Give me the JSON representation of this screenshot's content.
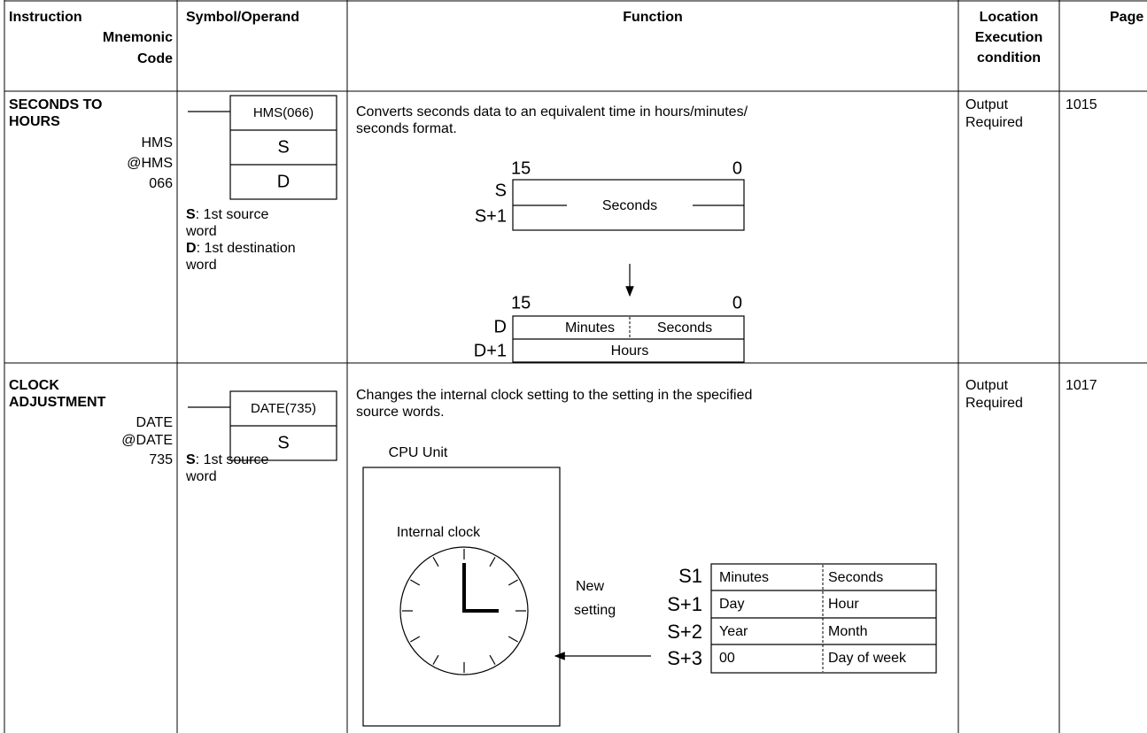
{
  "header": {
    "instruction": [
      "Instruction",
      "Mnemonic",
      "Code"
    ],
    "symbol": "Symbol/Operand",
    "function": "Function",
    "location": [
      "Location",
      "Execution",
      "condition"
    ],
    "page": "Page"
  },
  "rows": [
    {
      "instruction": {
        "name": [
          "SECONDS TO",
          "HOURS"
        ],
        "mnemonics": [
          "HMS",
          "@HMS",
          "066"
        ]
      },
      "symbol": {
        "box": "HMS(066)",
        "operands": [
          "S",
          "D"
        ],
        "notes": [
          {
            "term": "S",
            "text": [
              ": 1st source",
              "word"
            ]
          },
          {
            "term": "D",
            "text": [
              ": 1st destination",
              "word"
            ]
          }
        ]
      },
      "function": {
        "text": [
          "Converts seconds data to an equivalent time in hours/minutes/",
          "seconds format."
        ],
        "diagram": {
          "bit_high": "15",
          "bit_low": "0",
          "words": [
            "S",
            "S+1"
          ],
          "field": "Seconds",
          "result": {
            "bit_high": "15",
            "bit_low": "0",
            "words": [
              "D",
              "D+1"
            ],
            "fields": [
              "Minutes",
              "Seconds"
            ],
            "hours": "Hours"
          }
        }
      },
      "location": [
        "Output",
        "Required"
      ],
      "page": "1015"
    },
    {
      "instruction": {
        "name": [
          "CLOCK",
          "ADJUSTMENT"
        ],
        "mnemonics": [
          "DATE",
          "@DATE",
          "735"
        ]
      },
      "symbol": {
        "box": "DATE(735)",
        "operands": [
          "S"
        ],
        "notes": [
          {
            "term": "S",
            "text": [
              ": 1st source",
              "word"
            ]
          }
        ]
      },
      "function": {
        "text": [
          "Changes the internal clock setting to the setting in the specified",
          "source words."
        ],
        "diagram": {
          "unit": "CPU Unit",
          "clock": "Internal clock",
          "arrow_label": [
            "New",
            "setting"
          ],
          "words": [
            "S1",
            "S+1",
            "S+2",
            "S+3"
          ],
          "cells": [
            [
              "Minutes",
              "Seconds"
            ],
            [
              "Day",
              "Hour"
            ],
            [
              "Year",
              "Month"
            ],
            [
              "00",
              "Day of week"
            ]
          ]
        }
      },
      "location": [
        "Output",
        "Required"
      ],
      "page": "1017"
    }
  ]
}
